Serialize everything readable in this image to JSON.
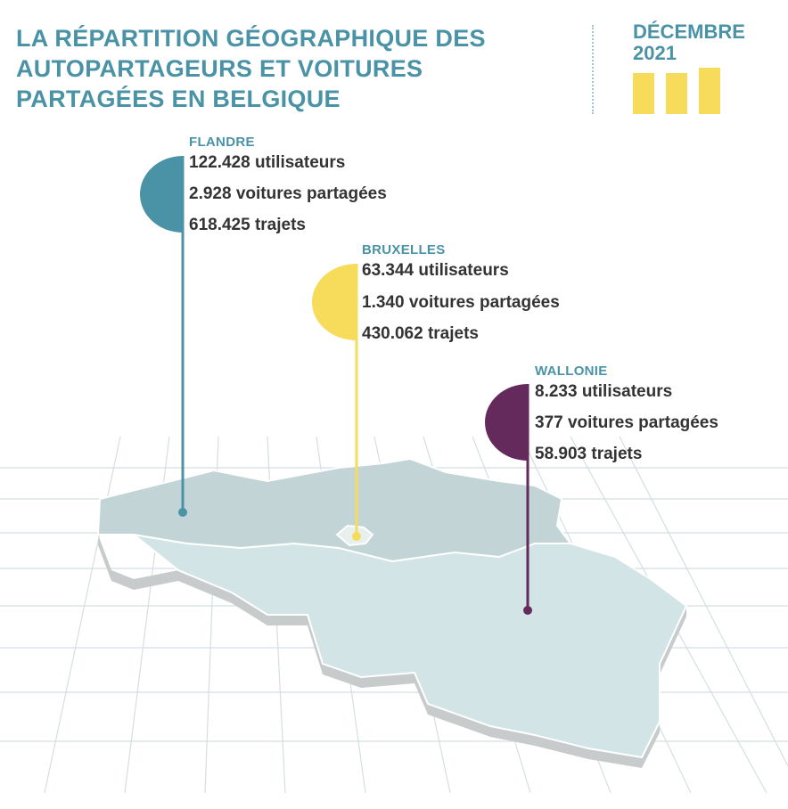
{
  "title": "LA RÉPARTITION GÉOGRAPHIQUE DES AUTOPARTAGEURS ET VOITURES PARTAGÉES EN BELGIQUE",
  "date": {
    "month": "DÉCEMBRE",
    "year": "2021"
  },
  "colors": {
    "flandre": "#4a93a6",
    "bruxelles": "#f6dc5a",
    "wallonie": "#652a5c",
    "title": "#4a93a6"
  },
  "regions": [
    {
      "name": "FLANDRE",
      "stats": [
        "122.428 utilisateurs",
        "2.928 voitures partagées",
        "618.425 trajets"
      ]
    },
    {
      "name": "BRUXELLES",
      "stats": [
        "63.344 utilisateurs",
        "1.340 voitures partagées",
        "430.062 trajets"
      ]
    },
    {
      "name": "WALLONIE",
      "stats": [
        "8.233 utilisateurs",
        "377 voitures partagées",
        "58.903 trajets"
      ]
    }
  ]
}
